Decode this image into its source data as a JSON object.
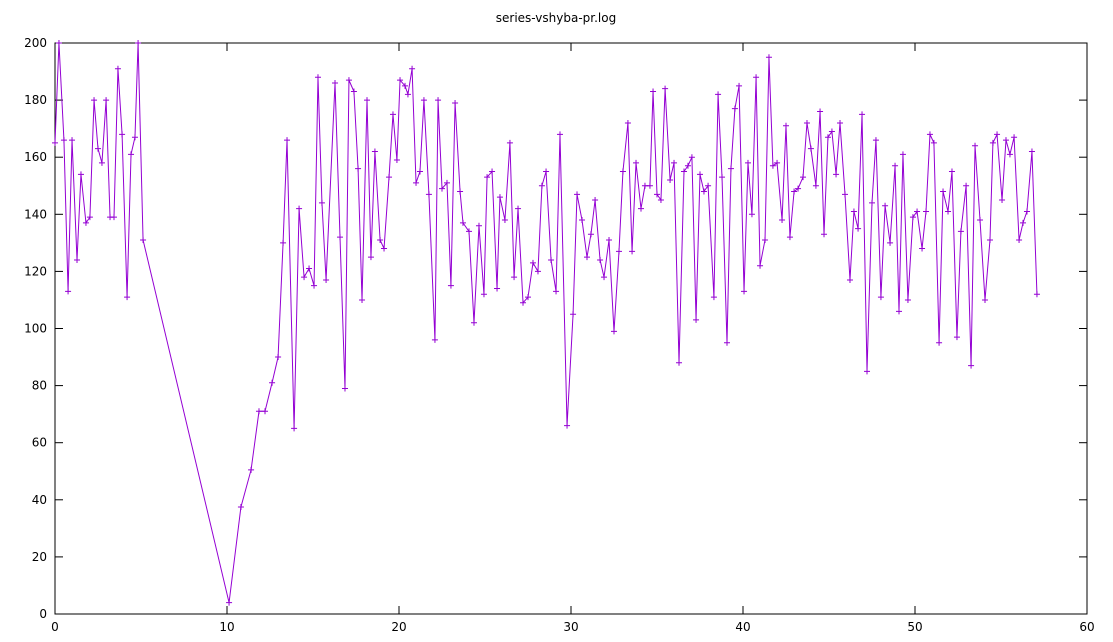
{
  "chart_data": {
    "type": "line",
    "title": "series-vshyba-pr.log",
    "x": [
      0,
      0.23,
      0.52,
      0.76,
      0.99,
      1.28,
      1.51,
      1.8,
      2.03,
      2.27,
      2.5,
      2.73,
      2.97,
      3.2,
      3.43,
      3.66,
      3.9,
      4.19,
      4.42,
      4.65,
      4.83,
      5.12,
      10.12,
      10.81,
      11.4,
      11.86,
      12.21,
      12.62,
      12.97,
      13.26,
      13.49,
      13.9,
      14.19,
      14.48,
      14.77,
      15.06,
      15.29,
      15.52,
      15.76,
      16.28,
      16.57,
      16.86,
      17.09,
      17.38,
      17.62,
      17.85,
      18.14,
      18.37,
      18.6,
      18.9,
      19.13,
      19.42,
      19.65,
      19.88,
      20.06,
      20.35,
      20.52,
      20.76,
      20.99,
      21.22,
      21.45,
      21.74,
      22.09,
      22.27,
      22.5,
      22.79,
      23.02,
      23.26,
      23.55,
      23.72,
      24.07,
      24.36,
      24.65,
      24.94,
      25.12,
      25.41,
      25.7,
      25.87,
      26.16,
      26.45,
      26.69,
      26.92,
      27.21,
      27.5,
      27.79,
      28.08,
      28.31,
      28.55,
      28.84,
      29.13,
      29.36,
      29.77,
      30.12,
      30.35,
      30.64,
      30.93,
      31.16,
      31.4,
      31.69,
      31.92,
      32.21,
      32.5,
      32.79,
      33.02,
      33.31,
      33.55,
      33.78,
      34.07,
      34.3,
      34.59,
      34.77,
      35.0,
      35.23,
      35.47,
      35.76,
      35.99,
      36.28,
      36.57,
      36.8,
      37.03,
      37.27,
      37.5,
      37.73,
      37.97,
      38.31,
      38.55,
      38.78,
      39.07,
      39.3,
      39.53,
      39.77,
      40.06,
      40.29,
      40.52,
      40.76,
      40.99,
      41.28,
      41.51,
      41.74,
      41.98,
      42.27,
      42.5,
      42.73,
      42.97,
      43.2,
      43.49,
      43.72,
      43.95,
      44.24,
      44.48,
      44.71,
      44.94,
      45.17,
      45.41,
      45.64,
      45.93,
      46.22,
      46.45,
      46.69,
      46.92,
      47.21,
      47.5,
      47.73,
      48.02,
      48.26,
      48.55,
      48.84,
      49.07,
      49.3,
      49.59,
      49.88,
      50.12,
      50.41,
      50.64,
      50.87,
      51.1,
      51.4,
      51.63,
      51.92,
      52.15,
      52.44,
      52.67,
      52.97,
      53.26,
      53.49,
      53.78,
      54.07,
      54.36,
      54.53,
      54.77,
      55.06,
      55.29,
      55.52,
      55.76,
      56.05,
      56.28,
      56.51,
      56.8,
      57.09
    ],
    "series": [
      {
        "color": "#9400d3",
        "values": [
          165,
          200,
          166,
          113,
          166,
          124,
          154,
          137,
          139,
          180,
          163,
          158,
          180,
          139,
          139,
          191,
          168,
          111,
          161,
          167,
          200,
          131,
          4,
          37.5,
          50.5,
          71,
          71,
          81,
          90,
          130,
          166,
          65,
          142,
          118,
          121,
          115,
          188,
          144,
          117,
          186,
          132,
          79,
          187,
          183,
          156,
          110,
          180,
          125,
          162,
          131,
          128,
          153,
          175,
          159,
          187,
          185,
          182,
          191,
          151,
          155,
          180,
          147,
          96,
          180,
          149,
          151,
          115,
          179,
          148,
          137,
          134,
          102,
          136,
          112,
          153,
          155,
          114,
          146,
          138,
          165,
          118,
          142,
          109,
          111,
          123,
          120,
          150,
          155,
          124,
          113,
          168,
          66,
          105,
          147,
          138,
          125,
          133,
          145,
          124,
          118,
          131,
          99,
          127,
          155,
          172,
          127,
          158,
          142,
          150,
          150,
          183,
          147,
          145,
          184,
          152,
          158,
          88,
          155,
          157,
          160,
          103,
          154,
          148,
          150,
          111,
          182,
          153,
          95,
          156,
          177,
          185,
          113,
          158,
          140,
          188,
          122,
          131,
          195,
          157,
          158,
          138,
          171,
          132,
          148,
          149,
          153,
          172,
          163,
          150,
          176,
          133,
          167,
          169,
          154,
          172,
          147,
          117,
          141,
          135,
          175,
          85,
          144,
          166,
          111,
          143,
          130,
          157,
          106,
          161,
          110,
          139,
          141,
          128,
          141,
          168,
          165,
          95,
          148,
          141,
          155,
          97,
          134,
          150,
          87,
          164,
          138,
          110,
          131,
          165,
          168,
          145,
          166,
          161,
          167,
          131,
          137,
          141,
          162,
          112
        ]
      }
    ],
    "xlim": [
      0,
      60
    ],
    "xticks": [
      0,
      10,
      20,
      30,
      40,
      50,
      60
    ],
    "ylim": [
      0,
      200
    ],
    "yticks": [
      0,
      20,
      40,
      60,
      80,
      100,
      120,
      140,
      160,
      180,
      200
    ]
  }
}
